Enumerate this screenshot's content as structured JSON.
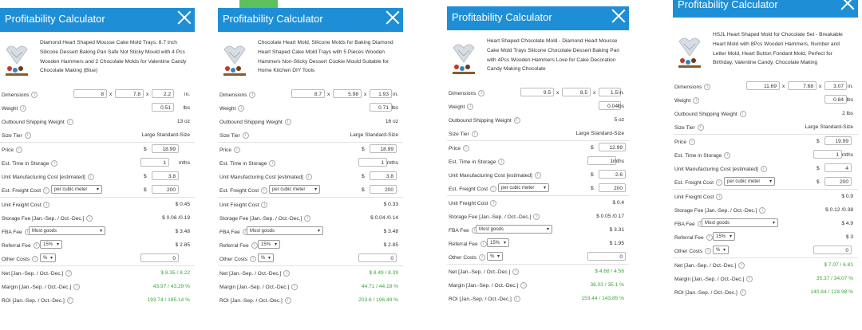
{
  "labels": {
    "title": "Profitability Calculator",
    "dimensions": "Dimensions",
    "weight": "Weight",
    "outbound": "Outbound Shipping Weight",
    "size_tier": "Size Tier",
    "price": "Price",
    "storage_time": "Est. Time in Storage",
    "unit_mfg": "Unit Manufacturing Cost [estimated]",
    "freight_cost": "Est. Freight Cost",
    "unit_freight": "Unit Freight Cost",
    "storage_fee": "Storage Fee [Jan.-Sep. / Oct.-Dec.]",
    "fba_fee": "FBA Fee",
    "referral_fee": "Referral Fee",
    "other_costs": "Other Costs",
    "net": "Net [Jan.-Sep. / Oct.-Dec.]",
    "margin": "Margin [Jan.-Sep. / Oct.-Dec.]",
    "roi": "ROI [Jan.-Sep. / Oct.-Dec.]",
    "x": "x",
    "in": "in.",
    "lbs": "lbs",
    "mths": "mths",
    "dollar": "$",
    "per_cubic_meter": "per cubic meter",
    "most_goods": "Most goods",
    "referral_pct": "15%",
    "other_pct": "%",
    "other_val": "0"
  },
  "panels": [
    {
      "product": "Diamond Heart Shaped Mousse Cake Mold Trays, 8.7 inch Silicone Dessert Baking Pan Safe Not Sticky Mould with 4 Pcs Wooden Hammers and 2 Chocolate Molds for Valentine Candy Chocolate Making (Blue)",
      "dim1": "8",
      "dim2": "7.8",
      "dim3": "2.2",
      "weight": "0.51",
      "outbound": "13 oz",
      "size_tier": "Large Standard-Size",
      "price": "18.99",
      "storage_time": "1",
      "unit_mfg": "3.8",
      "freight": "200",
      "unit_freight": "$ 0.45",
      "storage_fee": "$ 0.06 /0.19",
      "fba_fee": "$ 3.48",
      "referral_fee": "$ 2.85",
      "net": "$ 8.35 / 8.22",
      "margin": "43.97 / 43.29 %",
      "roi": "193.74 / 185.14 %"
    },
    {
      "product": "Chocolate Heart Mold, Silicone Molds for Baking Diamond Heart Shaped Cake Mold Trays with 5 Pieces Wooden Hammers Non-Sticky Dessert Cookie Mould Suitable for Home Kitchen DIY Tools",
      "dim1": "8.7",
      "dim2": "5.98",
      "dim3": "1.93",
      "weight": "0.71",
      "outbound": "16 oz",
      "size_tier": "Large Standard-Size",
      "price": "18.99",
      "storage_time": "1",
      "unit_mfg": "3.8",
      "freight": "200",
      "unit_freight": "$ 0.33",
      "storage_fee": "$ 0.04 /0.14",
      "fba_fee": "$ 3.48",
      "referral_fee": "$ 2.85",
      "net": "$ 8.49 / 8.39",
      "margin": "44.71 / 44.18 %",
      "roi": "203.6 / 196.49 %"
    },
    {
      "product": "Heart Shaped Chocolate Mold - Diamond Heart Mousse Cake Mold Trays Silicone Chocolate Dessert Baking Pan with 4Pcs Wooden Hammers Love for Cake Decoration Candy Making Chocolate",
      "dim1": "9.5",
      "dim2": "8.5",
      "dim3": "1.5",
      "weight": "0.04",
      "outbound": "5 oz",
      "size_tier": "Large Standard-Size",
      "price": "12.99",
      "storage_time": "1",
      "unit_mfg": "2.6",
      "freight": "200",
      "unit_freight": "$ 0.4",
      "storage_fee": "$ 0.05 /0.17",
      "fba_fee": "$ 3.31",
      "referral_fee": "$ 1.95",
      "net": "$ 4.68 / 4.56",
      "margin": "36.03 / 35.1 %",
      "roi": "153.44 / 143.85 %"
    },
    {
      "product": "HSJL Heart Shaped Mold for Chocolate Set - Breakable Heart Mold with 8Pcs Wooden Hammers, Number and Letter Mold, Heart Button Fondant Mold, Perfect for Birthday, Valentine Candy, Chocolate Making",
      "dim1": "11.69",
      "dim2": "7.68",
      "dim3": "3.07",
      "weight": "0.84",
      "outbound": "2 lbs",
      "size_tier": "Large Standard-Size",
      "price": "19.99",
      "storage_time": "1",
      "unit_mfg": "4",
      "freight": "200",
      "unit_freight": "$ 0.9",
      "storage_fee": "$ 0.12 /0.38",
      "fba_fee": "$ 4.9",
      "referral_fee": "$ 3",
      "net": "$ 7.07 / 6.81",
      "margin": "35.37 / 34.07 %",
      "roi": "140.84 / 128.98 %"
    }
  ],
  "colors": {
    "header": "#1e8fd6",
    "positive": "#3aa83a",
    "underline": "#5cc05c"
  }
}
